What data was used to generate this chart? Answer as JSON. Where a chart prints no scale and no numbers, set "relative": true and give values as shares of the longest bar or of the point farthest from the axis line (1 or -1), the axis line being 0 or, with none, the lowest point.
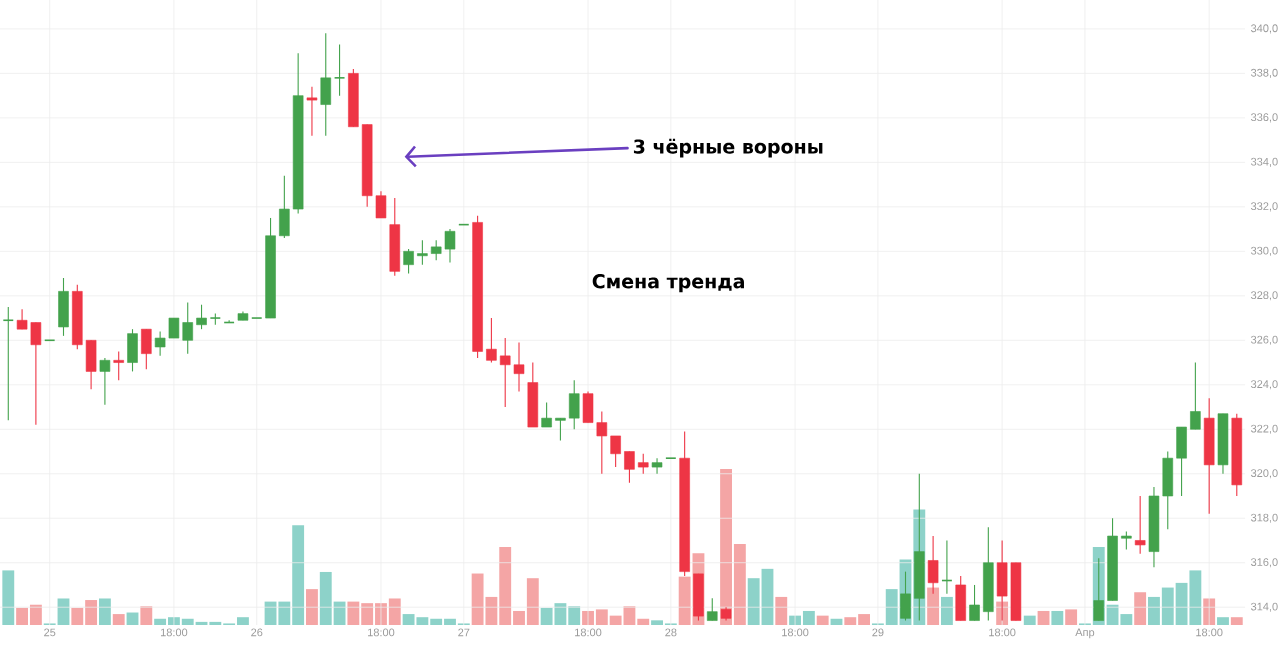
{
  "chart_data": [
    {
      "type": "candlestick",
      "ylim": [
        313.2,
        341.3
      ],
      "grid": true,
      "categories": [
        null,
        null,
        null,
        "25",
        null,
        null,
        null,
        null,
        null,
        null,
        null,
        null,
        "18:00",
        null,
        null,
        null,
        null,
        null,
        "26",
        null,
        null,
        null,
        null,
        null,
        null,
        null,
        null,
        "18:00",
        null,
        null,
        null,
        null,
        null,
        "27",
        null,
        null,
        null,
        null,
        null,
        null,
        null,
        null,
        "18:00",
        null,
        null,
        null,
        null,
        null,
        "28",
        null,
        null,
        null,
        null,
        null,
        null,
        null,
        null,
        "18:00",
        null,
        null,
        null,
        null,
        null,
        "29",
        null,
        null,
        null,
        null,
        null,
        null,
        null,
        null,
        "18:00",
        null,
        null,
        null,
        null,
        null,
        "Апр",
        null,
        null,
        null,
        null,
        null,
        null,
        null,
        null,
        "18:00",
        null,
        null
      ],
      "yticks": [
        {
          "value": 314,
          "label": "314,0"
        },
        {
          "value": 316,
          "label": "316,0"
        },
        {
          "value": 318,
          "label": "318,0"
        },
        {
          "value": 320,
          "label": "320,0"
        },
        {
          "value": 322,
          "label": "322,0"
        },
        {
          "value": 324,
          "label": "324,0"
        },
        {
          "value": 326,
          "label": "326,0"
        },
        {
          "value": 328,
          "label": "328,0"
        },
        {
          "value": 330,
          "label": "330,0"
        },
        {
          "value": 332,
          "label": "332,0"
        },
        {
          "value": 334,
          "label": "334,0"
        },
        {
          "value": 336,
          "label": "336,0"
        },
        {
          "value": 338,
          "label": "338,0"
        },
        {
          "value": 340,
          "label": "340,0"
        }
      ],
      "ohlc": [
        [
          326.9,
          327.5,
          322.4,
          326.9
        ],
        [
          326.9,
          327.4,
          326.5,
          326.5
        ],
        [
          326.8,
          326.8,
          322.2,
          325.8
        ],
        [
          326.0,
          326.0,
          326.0,
          326.0
        ],
        [
          326.6,
          328.8,
          326.2,
          328.2
        ],
        [
          328.2,
          328.5,
          325.6,
          325.8
        ],
        [
          326.0,
          326.0,
          323.8,
          324.6
        ],
        [
          324.6,
          325.2,
          323.1,
          325.1
        ],
        [
          325.1,
          325.5,
          324.2,
          325.0
        ],
        [
          325.0,
          326.5,
          324.6,
          326.3
        ],
        [
          326.5,
          326.5,
          324.7,
          325.4
        ],
        [
          325.7,
          326.4,
          325.3,
          326.1
        ],
        [
          326.1,
          327.0,
          326.1,
          327.0
        ],
        [
          326.0,
          327.7,
          325.4,
          326.8
        ],
        [
          326.7,
          327.6,
          326.5,
          327.0
        ],
        [
          327.0,
          327.2,
          326.7,
          327.0
        ],
        [
          326.8,
          326.9,
          326.8,
          326.8
        ],
        [
          326.9,
          327.3,
          326.9,
          327.2
        ],
        [
          327.0,
          327.0,
          327.0,
          327.0
        ],
        [
          327.0,
          331.5,
          327.0,
          330.7
        ],
        [
          330.7,
          333.4,
          330.6,
          331.9
        ],
        [
          331.9,
          338.9,
          331.7,
          337.0
        ],
        [
          336.9,
          337.4,
          335.2,
          336.8
        ],
        [
          336.6,
          339.8,
          335.2,
          337.8
        ],
        [
          337.8,
          339.3,
          337.0,
          337.8
        ],
        [
          338.0,
          338.2,
          335.6,
          335.6
        ],
        [
          335.7,
          335.7,
          332.0,
          332.5
        ],
        [
          332.5,
          332.7,
          331.5,
          331.5
        ],
        [
          331.2,
          332.4,
          328.9,
          329.1
        ],
        [
          329.4,
          330.1,
          329.0,
          330.0
        ],
        [
          329.8,
          330.5,
          329.4,
          329.9
        ],
        [
          329.9,
          330.5,
          329.6,
          330.2
        ],
        [
          330.1,
          331.0,
          329.5,
          330.9
        ],
        [
          331.2,
          331.2,
          331.2,
          331.2
        ],
        [
          331.3,
          331.6,
          325.2,
          325.5
        ],
        [
          325.6,
          327.0,
          325.0,
          325.1
        ],
        [
          325.3,
          326.1,
          323.0,
          324.9
        ],
        [
          324.9,
          325.9,
          323.7,
          324.5
        ],
        [
          324.1,
          325.0,
          322.1,
          322.1
        ],
        [
          322.1,
          323.2,
          322.1,
          322.5
        ],
        [
          322.4,
          322.5,
          321.5,
          322.5
        ],
        [
          322.5,
          324.2,
          322.0,
          323.6
        ],
        [
          323.6,
          323.7,
          322.3,
          322.3
        ],
        [
          322.3,
          322.8,
          320.0,
          321.7
        ],
        [
          321.7,
          321.7,
          320.3,
          320.9
        ],
        [
          321.0,
          321.0,
          319.6,
          320.2
        ],
        [
          320.5,
          320.9,
          320.0,
          320.3
        ],
        [
          320.3,
          320.7,
          320.0,
          320.5
        ],
        [
          320.7,
          320.7,
          320.7,
          320.7
        ],
        [
          320.7,
          321.9,
          315.4,
          315.6
        ],
        [
          315.5,
          315.5,
          313.4,
          313.6
        ],
        [
          313.4,
          314.4,
          313.4,
          313.8
        ],
        [
          313.9,
          314.0,
          313.4,
          313.5
        ],
        null,
        null,
        null,
        null,
        null,
        null,
        null,
        null,
        null,
        null,
        null,
        null,
        [
          313.5,
          315.6,
          313.4,
          314.6
        ],
        [
          314.4,
          320.0,
          313.4,
          316.5
        ],
        [
          316.1,
          317.2,
          314.6,
          315.1
        ],
        [
          315.2,
          317.0,
          314.6,
          315.2
        ],
        [
          315.0,
          315.4,
          313.4,
          313.4
        ],
        [
          313.4,
          315.0,
          313.4,
          314.1
        ],
        [
          313.8,
          317.6,
          313.4,
          316.0
        ],
        [
          316.0,
          317.0,
          313.4,
          314.5
        ],
        [
          316.0,
          316.0,
          313.4,
          313.4
        ],
        null,
        null,
        null,
        null,
        null,
        [
          313.4,
          316.2,
          313.4,
          314.3
        ],
        [
          314.3,
          318.0,
          314.3,
          317.2
        ],
        [
          317.1,
          317.4,
          316.6,
          317.2
        ],
        [
          317.0,
          319.0,
          316.4,
          316.8
        ],
        [
          316.5,
          319.4,
          315.8,
          319.0
        ],
        [
          319.0,
          321.0,
          317.5,
          320.7
        ],
        [
          320.7,
          322.1,
          319.0,
          322.1
        ],
        [
          322.0,
          325.0,
          322.0,
          322.8
        ],
        [
          322.5,
          323.4,
          318.2,
          320.4
        ],
        [
          320.4,
          322.7,
          320.0,
          322.7
        ],
        [
          322.5,
          322.7,
          319.0,
          319.5
        ]
      ],
      "colors": [
        "#43a24c",
        "#ee3545",
        "#ee3545",
        "#43a24c",
        "#43a24c",
        "#ee3545",
        "#ee3545",
        "#43a24c",
        "#ee3545",
        "#43a24c",
        "#ee3545",
        "#43a24c",
        "#43a24c",
        "#43a24c",
        "#43a24c",
        "#43a24c",
        "#43a24c",
        "#43a24c",
        "#43a24c",
        "#43a24c",
        "#43a24c",
        "#43a24c",
        "#ee3545",
        "#43a24c",
        "#43a24c",
        "#ee3545",
        "#ee3545",
        "#ee3545",
        "#ee3545",
        "#43a24c",
        "#43a24c",
        "#43a24c",
        "#43a24c",
        "#43a24c",
        "#ee3545",
        "#ee3545",
        "#ee3545",
        "#ee3545",
        "#ee3545",
        "#43a24c",
        "#43a24c",
        "#43a24c",
        "#ee3545",
        "#ee3545",
        "#ee3545",
        "#ee3545",
        "#ee3545",
        "#43a24c",
        "#43a24c",
        "#ee3545",
        "#ee3545",
        "#43a24c",
        "#ee3545",
        null,
        null,
        null,
        null,
        null,
        null,
        null,
        null,
        null,
        null,
        null,
        null,
        "#43a24c",
        "#43a24c",
        "#ee3545",
        "#43a24c",
        "#ee3545",
        "#43a24c",
        "#43a24c",
        "#ee3545",
        "#ee3545",
        null,
        null,
        null,
        null,
        null,
        "#43a24c",
        "#43a24c",
        "#43a24c",
        "#ee3545",
        "#43a24c",
        "#43a24c",
        "#43a24c",
        "#43a24c",
        "#ee3545",
        "#43a24c",
        "#ee3545"
      ],
      "annotations": [
        "3 чёрные вороны",
        "Смена тренда"
      ]
    },
    {
      "type": "bar",
      "relative": true,
      "categories": [
        null,
        null,
        null,
        null,
        null,
        null,
        null,
        null,
        null,
        null,
        null,
        null,
        null,
        null,
        null,
        null,
        null,
        null,
        null,
        null,
        null,
        null,
        null,
        null,
        null,
        null,
        null,
        null,
        null,
        null,
        null,
        null,
        null,
        null,
        null,
        null,
        null,
        null,
        null,
        null,
        null,
        null,
        null,
        null,
        null,
        null,
        null,
        null,
        null,
        null,
        null,
        null,
        null,
        null,
        null,
        null,
        null,
        null,
        null,
        null,
        null,
        null,
        null,
        null,
        null,
        null,
        null,
        null,
        null,
        null,
        null,
        null,
        null,
        null,
        null,
        null,
        null,
        null,
        null,
        null,
        null,
        null,
        null,
        null,
        null,
        null,
        null,
        null,
        null,
        null
      ],
      "values": [
        0.35,
        0.11,
        0.13,
        0.01,
        0.17,
        0.11,
        0.16,
        0.17,
        0.07,
        0.08,
        0.12,
        0.04,
        0.05,
        0.04,
        0.02,
        0.02,
        0.01,
        0.05,
        null,
        0.15,
        0.15,
        0.64,
        0.23,
        0.34,
        0.15,
        0.15,
        0.14,
        0.14,
        0.17,
        0.07,
        0.05,
        0.04,
        0.04,
        0.01,
        0.33,
        0.18,
        0.5,
        0.09,
        0.3,
        0.11,
        0.14,
        0.12,
        0.09,
        0.1,
        0.06,
        0.12,
        0.04,
        0.03,
        0.01,
        0.31,
        0.46,
        null,
        1,
        0.52,
        0.3,
        0.36,
        0.18,
        0.06,
        0.09,
        0.06,
        0.04,
        0.05,
        0.07,
        0.01,
        0.23,
        0.42,
        0.74,
        0.24,
        0.18,
        null,
        null,
        null,
        0.15,
        null,
        0.06,
        0.09,
        0.09,
        0.1,
        0.01,
        0.5,
        0.13,
        0.07,
        0.21,
        0.18,
        0.24,
        0.27,
        0.35,
        0.17,
        0.05,
        0.05
      ],
      "colors": [
        "#8dd2c9",
        "#f4a5a5",
        "#f4a5a5",
        "#8dd2c9",
        "#8dd2c9",
        "#f4a5a5",
        "#f4a5a5",
        "#8dd2c9",
        "#f4a5a5",
        "#8dd2c9",
        "#f4a5a5",
        "#8dd2c9",
        "#8dd2c9",
        "#8dd2c9",
        "#8dd2c9",
        "#8dd2c9",
        "#8dd2c9",
        "#8dd2c9",
        "#f4a5a5",
        "#8dd2c9",
        "#8dd2c9",
        "#8dd2c9",
        "#f4a5a5",
        "#8dd2c9",
        "#8dd2c9",
        "#f4a5a5",
        "#f4a5a5",
        "#f4a5a5",
        "#f4a5a5",
        "#8dd2c9",
        "#8dd2c9",
        "#8dd2c9",
        "#8dd2c9",
        "#8dd2c9",
        "#f4a5a5",
        "#f4a5a5",
        "#f4a5a5",
        "#f4a5a5",
        "#f4a5a5",
        "#8dd2c9",
        "#8dd2c9",
        "#8dd2c9",
        "#f4a5a5",
        "#f4a5a5",
        "#f4a5a5",
        "#f4a5a5",
        "#f4a5a5",
        "#8dd2c9",
        "#8dd2c9",
        "#f4a5a5",
        "#f4a5a5",
        "#8dd2c9",
        "#f4a5a5",
        "#f4a5a5",
        "#8dd2c9",
        "#8dd2c9",
        "#f4a5a5",
        "#8dd2c9",
        "#8dd2c9",
        "#f4a5a5",
        "#8dd2c9",
        "#f4a5a5",
        "#f4a5a5",
        "#8dd2c9",
        "#8dd2c9",
        "#8dd2c9",
        "#8dd2c9",
        "#f4a5a5",
        "#8dd2c9",
        "#f4a5a5",
        "#8dd2c9",
        "#8dd2c9",
        "#f4a5a5",
        "#f4a5a5",
        "#8dd2c9",
        "#f4a5a5",
        "#8dd2c9",
        "#f4a5a5",
        "#8dd2c9",
        "#8dd2c9",
        "#8dd2c9",
        "#8dd2c9",
        "#f4a5a5",
        "#8dd2c9",
        "#8dd2c9",
        "#8dd2c9",
        "#8dd2c9",
        "#f4a5a5",
        "#8dd2c9",
        "#f4a5a5"
      ]
    }
  ]
}
